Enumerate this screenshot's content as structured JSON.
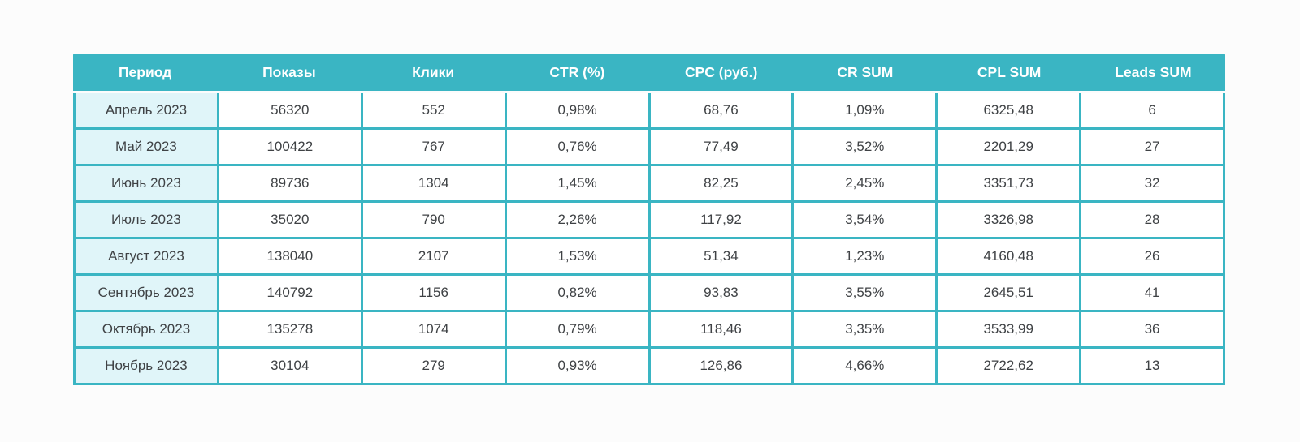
{
  "title": "Monthly advertising performance table",
  "colors": {
    "teal": "#3ab5c3",
    "light_cell": "#e0f5f9",
    "cell_bg": "#ffffff",
    "text": "#3f4245",
    "header_text": "#ffffff",
    "page_bg": "#fcfcfc"
  },
  "chart_data": {
    "type": "table",
    "columns": [
      "Период",
      "Показы",
      "Клики",
      "CTR (%)",
      "CPC (руб.)",
      "CR SUM",
      "CPL SUM",
      "Leads SUM"
    ],
    "rows": [
      [
        "Апрель 2023",
        "56320",
        "552",
        "0,98%",
        "68,76",
        "1,09%",
        "6325,48",
        "6"
      ],
      [
        "Май 2023",
        "100422",
        "767",
        "0,76%",
        "77,49",
        "3,52%",
        "2201,29",
        "27"
      ],
      [
        "Июнь 2023",
        "89736",
        "1304",
        "1,45%",
        "82,25",
        "2,45%",
        "3351,73",
        "32"
      ],
      [
        "Июль 2023",
        "35020",
        "790",
        "2,26%",
        "117,92",
        "3,54%",
        "3326,98",
        "28"
      ],
      [
        "Август 2023",
        "138040",
        "2107",
        "1,53%",
        "51,34",
        "1,23%",
        "4160,48",
        "26"
      ],
      [
        "Сентябрь 2023",
        "140792",
        "1156",
        "0,82%",
        "93,83",
        "3,55%",
        "2645,51",
        "41"
      ],
      [
        "Октябрь 2023",
        "135278",
        "1074",
        "0,79%",
        "118,46",
        "3,35%",
        "3533,99",
        "36"
      ],
      [
        "Ноябрь 2023",
        "30104",
        "279",
        "0,93%",
        "126,86",
        "4,66%",
        "2722,62",
        "13"
      ]
    ],
    "layout": {
      "grid": "teal grid lines, white gap between header and body",
      "first_column_highlight": true,
      "header_style": "solid teal band, bold white centered text"
    }
  }
}
